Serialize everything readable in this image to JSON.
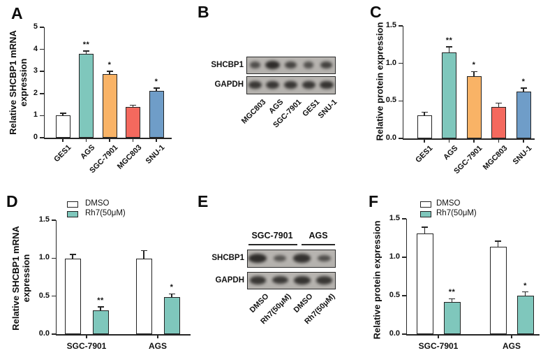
{
  "panels": [
    {
      "letter": "A"
    },
    {
      "letter": "B"
    },
    {
      "letter": "C"
    },
    {
      "letter": "D"
    },
    {
      "letter": "E"
    },
    {
      "letter": "F"
    }
  ],
  "colors": {
    "white_bar": "#ffffff",
    "teal": "#7fc7bc",
    "orange": "#f9b366",
    "red": "#f4695e",
    "blue": "#6f9dc8",
    "axis": "#262626",
    "blot_bg": "#b4b1ad",
    "band": "#2e2c2a"
  },
  "chart_data": [
    {
      "panel": "A",
      "type": "bar",
      "title": "",
      "ylabel": "Relative SHCBP1 mRNA\nexpression",
      "xlabel": "",
      "categories": [
        "GES1",
        "AGS",
        "SGC-7901",
        "MGC803",
        "SNU-1"
      ],
      "values": [
        1.0,
        3.8,
        2.88,
        1.4,
        2.12
      ],
      "errors": [
        0.1,
        0.12,
        0.12,
        0.07,
        0.13
      ],
      "significance": [
        "",
        "**",
        "*",
        "",
        "*"
      ],
      "bar_colors": [
        "#ffffff",
        "#7fc7bc",
        "#f9b366",
        "#f4695e",
        "#6f9dc8"
      ],
      "ylim": [
        0,
        5
      ],
      "yticks": [
        "0",
        "1",
        "2",
        "3",
        "4",
        "5"
      ],
      "grid": false
    },
    {
      "panel": "C",
      "type": "bar",
      "title": "",
      "ylabel": "Relative protein expression",
      "xlabel": "",
      "categories": [
        "GES1",
        "AGS",
        "SGC-7901",
        "MGC803",
        "SNU-1"
      ],
      "values": [
        0.31,
        1.15,
        0.83,
        0.42,
        0.62
      ],
      "errors": [
        0.04,
        0.07,
        0.06,
        0.05,
        0.05
      ],
      "significance": [
        "",
        "**",
        "*",
        "",
        "*"
      ],
      "bar_colors": [
        "#ffffff",
        "#7fc7bc",
        "#f9b366",
        "#f4695e",
        "#6f9dc8"
      ],
      "ylim": [
        0,
        1.5
      ],
      "yticks": [
        "0.0",
        "0.5",
        "1.0",
        "1.5"
      ],
      "grid": false
    },
    {
      "panel": "D",
      "type": "grouped_bar",
      "title": "",
      "ylabel": "Relative SHCBP1 mRNA\nexpression",
      "xlabel": "",
      "categories": [
        "SGC-7901",
        "AGS"
      ],
      "series": [
        {
          "name": "DMSO",
          "color": "#ffffff",
          "values": [
            0.99,
            0.99
          ],
          "errors": [
            0.06,
            0.11
          ],
          "significance": [
            "",
            ""
          ]
        },
        {
          "name": "Rh7(50μM)",
          "color": "#7fc7bc",
          "values": [
            0.31,
            0.49
          ],
          "errors": [
            0.05,
            0.04
          ],
          "significance": [
            "**",
            "*"
          ]
        }
      ],
      "ylim": [
        0,
        1.5
      ],
      "yticks": [
        "0.0",
        "0.5",
        "1.0",
        "1.5"
      ],
      "legend_position": "top-left",
      "grid": false
    },
    {
      "panel": "F",
      "type": "grouped_bar",
      "title": "",
      "ylabel": "Relative protein expression",
      "xlabel": "",
      "categories": [
        "SGC-7901",
        "AGS"
      ],
      "series": [
        {
          "name": "DMSO",
          "color": "#ffffff",
          "values": [
            1.31,
            1.14
          ],
          "errors": [
            0.08,
            0.07
          ],
          "significance": [
            "",
            ""
          ]
        },
        {
          "name": "Rh7(50μM)",
          "color": "#7fc7bc",
          "values": [
            0.42,
            0.5
          ],
          "errors": [
            0.04,
            0.05
          ],
          "significance": [
            "**",
            "*"
          ]
        }
      ],
      "ylim": [
        0,
        1.5
      ],
      "yticks": [
        "0.0",
        "0.5",
        "1.0",
        "1.5"
      ],
      "legend_position": "top-left",
      "grid": false
    }
  ],
  "blots": [
    {
      "panel": "B",
      "group_headers": [],
      "rows": [
        {
          "label": "SHCBP1",
          "band_strengths": [
            0.55,
            1.0,
            0.68,
            0.5,
            0.72
          ]
        },
        {
          "label": "GAPDH",
          "band_strengths": [
            0.85,
            0.85,
            0.85,
            0.85,
            0.9
          ]
        }
      ],
      "lanes": [
        "MGC803",
        "AGS",
        "SGC-7901",
        "GES1",
        "SNU-1"
      ]
    },
    {
      "panel": "E",
      "group_headers": [
        "SGC-7901",
        "AGS"
      ],
      "rows": [
        {
          "label": "SHCBP1",
          "band_strengths": [
            1.0,
            0.45,
            0.92,
            0.55
          ]
        },
        {
          "label": "GAPDH",
          "band_strengths": [
            0.85,
            0.82,
            0.9,
            0.85
          ]
        }
      ],
      "lanes": [
        "DMSO",
        "Rh7(50μM)",
        "DMSO",
        "Rh7(50μM)"
      ]
    }
  ]
}
